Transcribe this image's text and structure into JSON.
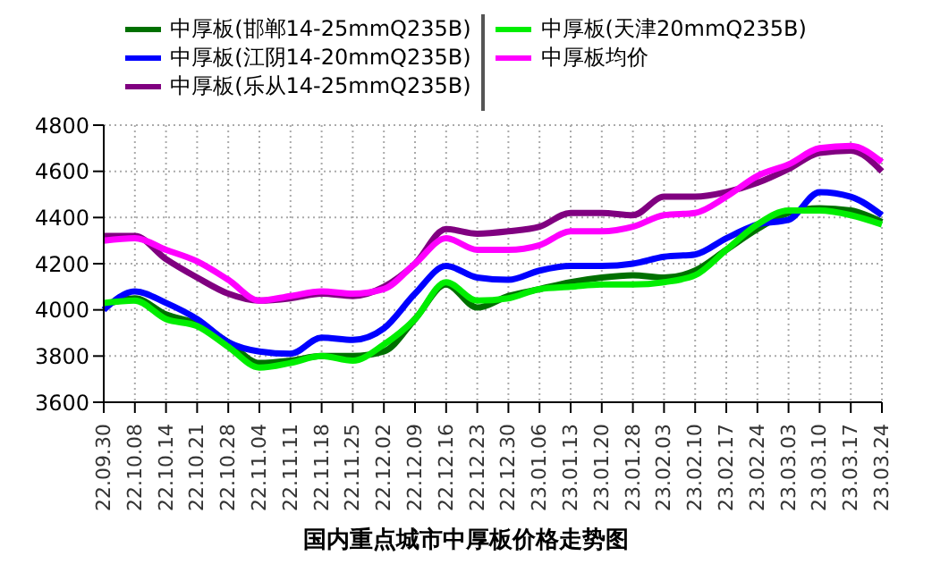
{
  "chart_data": {
    "type": "line",
    "title": "国内重点城市中厚板价格走势图",
    "categories": [
      "22.09.30",
      "22.10.08",
      "22.10.14",
      "22.10.21",
      "22.10.28",
      "22.11.04",
      "22.11.11",
      "22.11.18",
      "22.11.25",
      "22.12.02",
      "22.12.09",
      "22.12.16",
      "22.12.23",
      "22.12.30",
      "23.01.06",
      "23.01.13",
      "23.01.20",
      "23.01.28",
      "23.02.03",
      "23.02.10",
      "23.02.17",
      "23.02.24",
      "23.03.03",
      "23.03.10",
      "23.03.17",
      "23.03.24"
    ],
    "series": [
      {
        "name": "中厚板(邯郸14-25mmQ235B)",
        "color": "#007000",
        "values": [
          4020,
          4050,
          3980,
          3940,
          3860,
          3770,
          3780,
          3800,
          3800,
          3820,
          3960,
          4110,
          4010,
          4060,
          4090,
          4120,
          4140,
          4150,
          4140,
          4170,
          4260,
          4350,
          4420,
          4440,
          4430,
          4380
        ]
      },
      {
        "name": "中厚板(江阴14-20mmQ235B)",
        "color": "#0000ff",
        "values": [
          4000,
          4080,
          4030,
          3960,
          3860,
          3820,
          3810,
          3880,
          3870,
          3920,
          4070,
          4190,
          4140,
          4130,
          4170,
          4190,
          4190,
          4200,
          4230,
          4240,
          4310,
          4370,
          4390,
          4510,
          4490,
          4410
        ]
      },
      {
        "name": "中厚板(乐从14-25mmQ235B)",
        "color": "#800080",
        "values": [
          4320,
          4320,
          4220,
          4140,
          4070,
          4040,
          4050,
          4070,
          4060,
          4100,
          4200,
          4350,
          4330,
          4340,
          4360,
          4420,
          4420,
          4410,
          4490,
          4490,
          4510,
          4550,
          4610,
          4680,
          4690,
          4600
        ]
      },
      {
        "name": "中厚板(天津20mmQ235B)",
        "color": "#00ee00",
        "values": [
          4030,
          4040,
          3960,
          3930,
          3840,
          3750,
          3770,
          3800,
          3780,
          3850,
          3960,
          4120,
          4040,
          4050,
          4090,
          4100,
          4110,
          4110,
          4120,
          4150,
          4260,
          4370,
          4430,
          4430,
          4410,
          4370
        ]
      },
      {
        "name": "中厚板均价",
        "color": "#ff00ff",
        "values": [
          4300,
          4310,
          4260,
          4210,
          4130,
          4040,
          4060,
          4080,
          4070,
          4090,
          4200,
          4310,
          4260,
          4260,
          4280,
          4340,
          4340,
          4360,
          4410,
          4420,
          4490,
          4580,
          4630,
          4700,
          4710,
          4640
        ]
      }
    ],
    "ylim": [
      3600,
      4800
    ],
    "yticks": [
      3600,
      3800,
      4000,
      4200,
      4400,
      4600,
      4800
    ],
    "grid": true,
    "legend": "top",
    "marker": "none",
    "line_style": "solid"
  }
}
